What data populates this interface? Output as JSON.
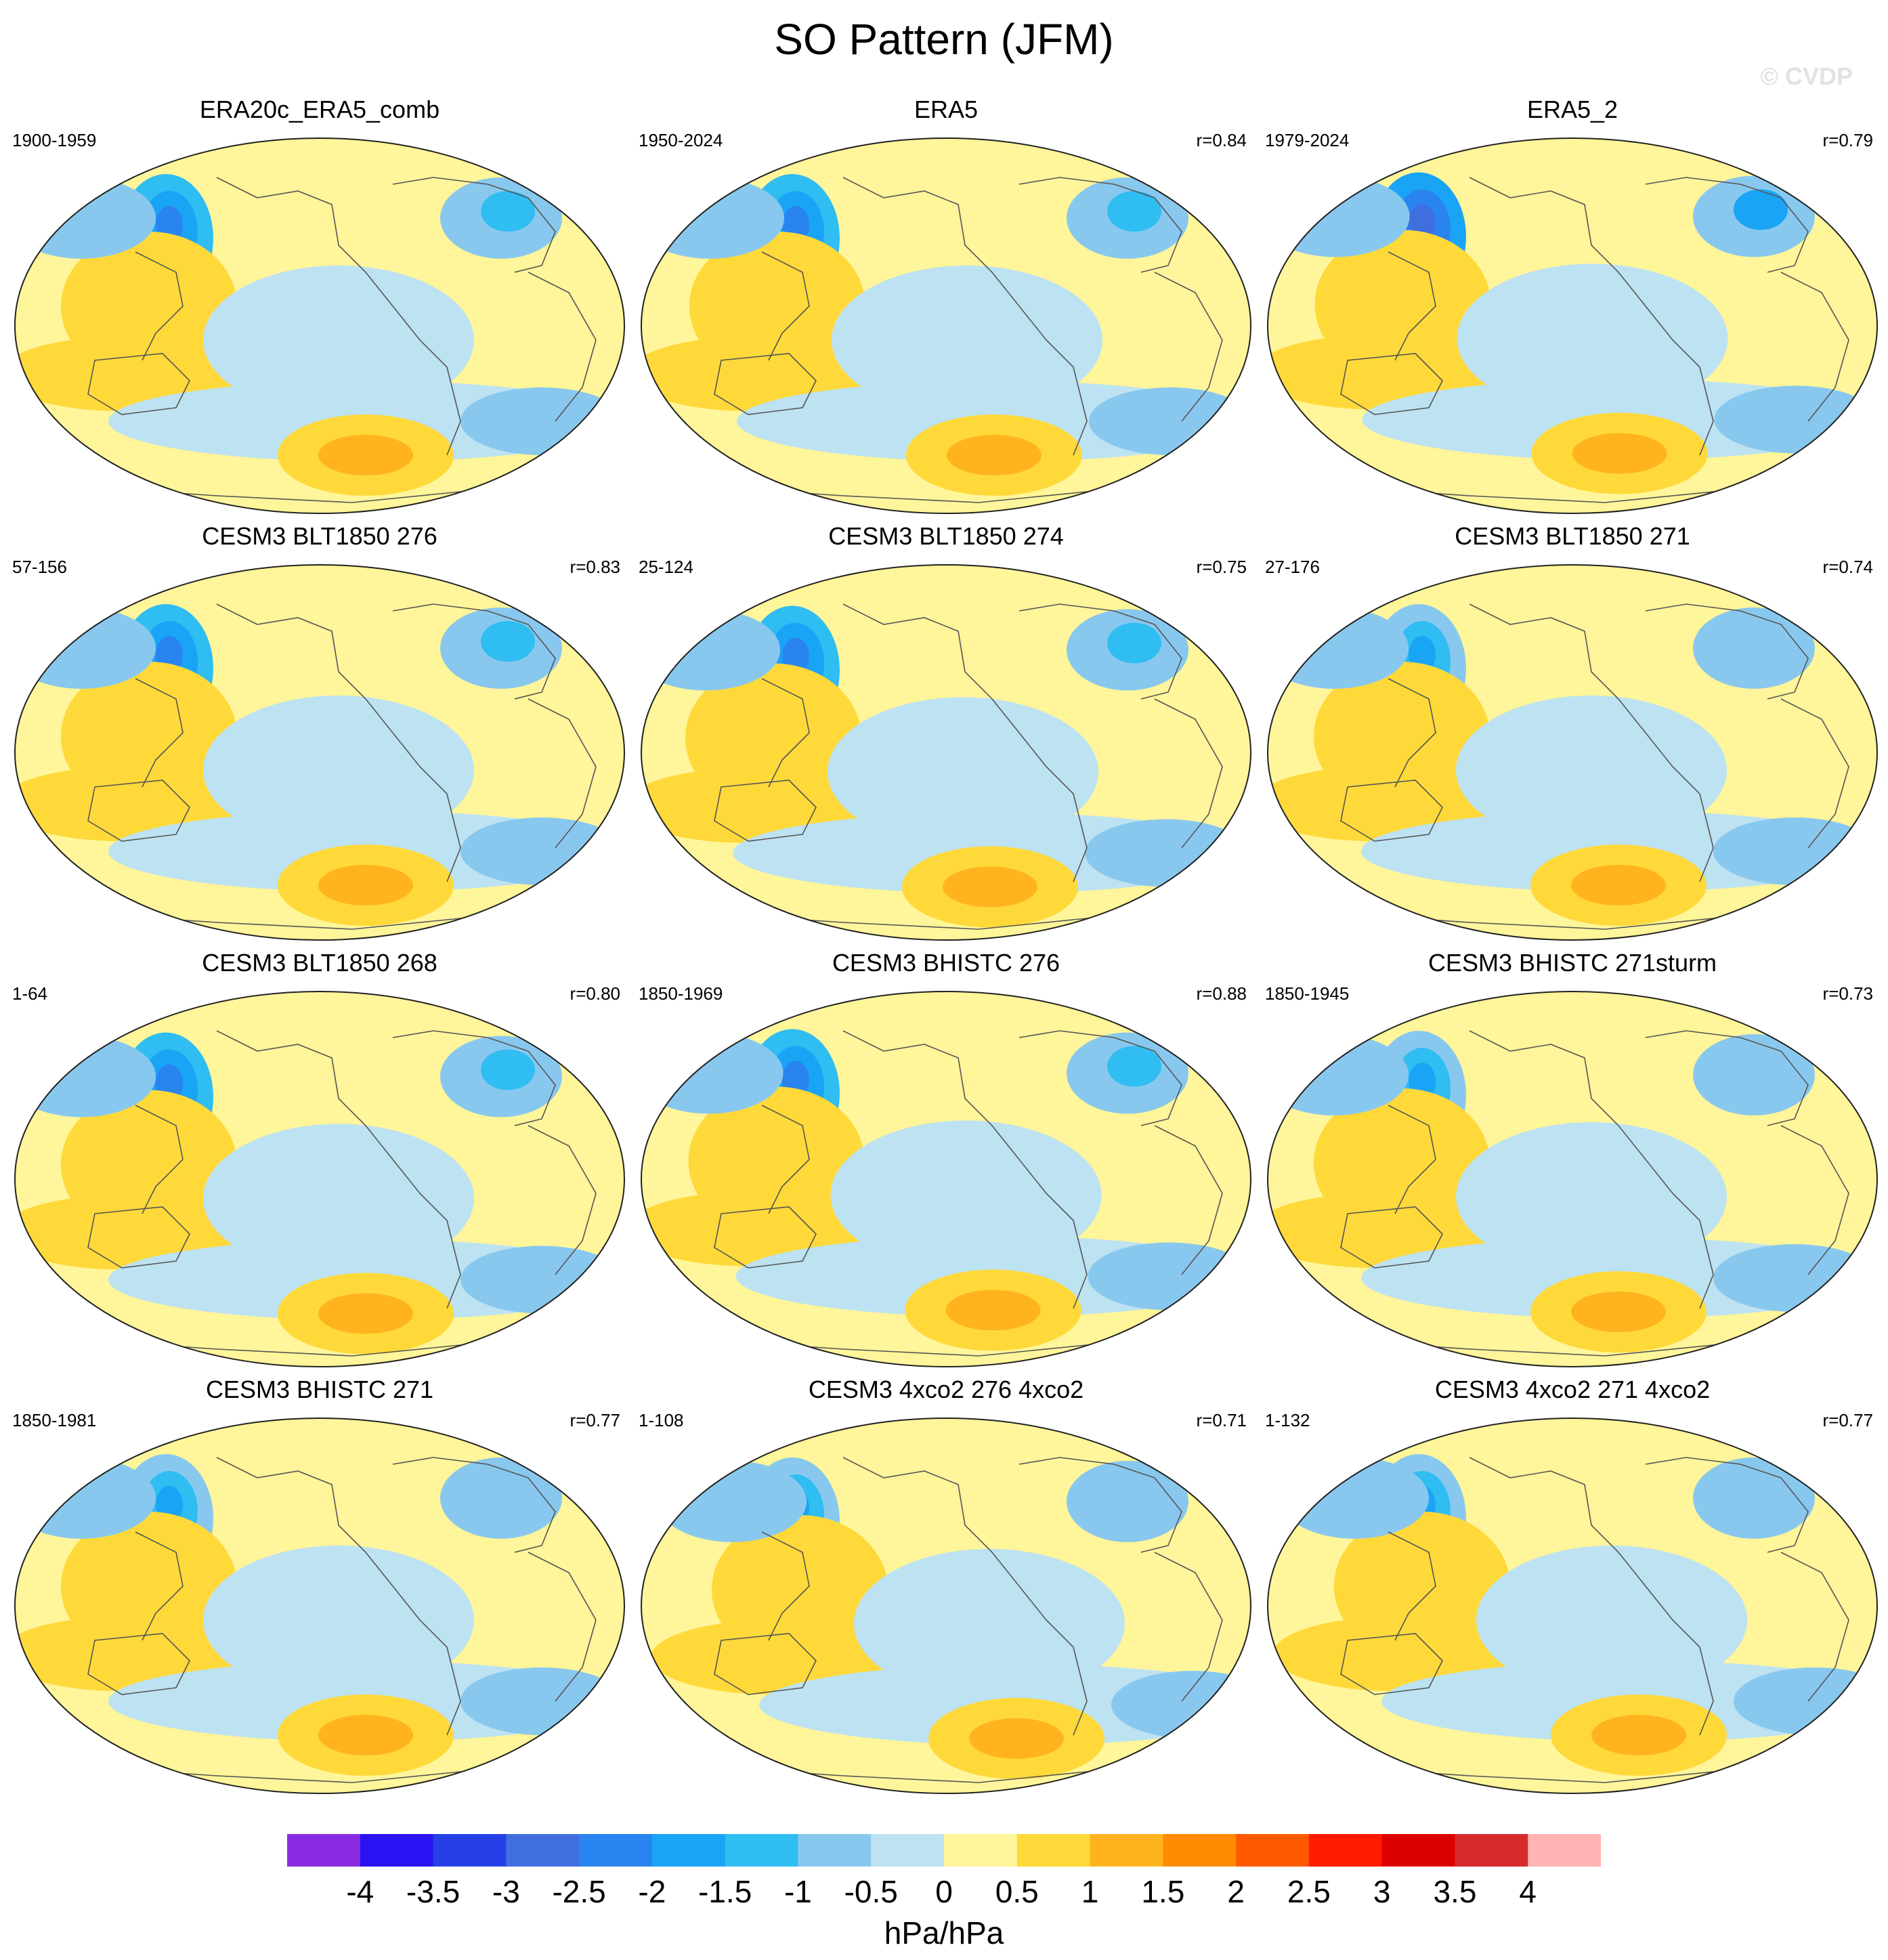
{
  "chart_data": {
    "type": "heatmap",
    "title": "SO Pattern (JFM)",
    "watermark": "© CVDP",
    "units": "hPa/hPa",
    "colorbar": {
      "levels": [
        "-4",
        "-3.5",
        "-3",
        "-2.5",
        "-2",
        "-1.5",
        "-1",
        "-0.5",
        "0",
        "0.5",
        "1",
        "1.5",
        "2",
        "2.5",
        "3",
        "3.5",
        "4"
      ],
      "colors": [
        "#8a2be2",
        "#2a13f2",
        "#2440e6",
        "#3f6fdf",
        "#2a84f0",
        "#1aa4f5",
        "#2fbdf2",
        "#89c8ee",
        "#bde2f2",
        "#fff59a",
        "#ffd93a",
        "#ffb41f",
        "#ff8c00",
        "#ff5a00",
        "#ff1a00",
        "#dd0000",
        "#d62b2b",
        "#ffb3b3"
      ]
    },
    "panels": [
      {
        "title": "ERA20c_ERA5_comb",
        "years": "1900-1959",
        "r": ""
      },
      {
        "title": "ERA5",
        "years": "1950-2024",
        "r": "r=0.84"
      },
      {
        "title": "ERA5_2",
        "years": "1979-2024",
        "r": "r=0.79"
      },
      {
        "title": "CESM3 BLT1850 276",
        "years": "57-156",
        "r": "r=0.83"
      },
      {
        "title": "CESM3 BLT1850 274",
        "years": "25-124",
        "r": "r=0.75"
      },
      {
        "title": "CESM3 BLT1850 271",
        "years": "27-176",
        "r": "r=0.74"
      },
      {
        "title": "CESM3 BLT1850 268",
        "years": "1-64",
        "r": "r=0.80"
      },
      {
        "title": "CESM3 BHISTC 276",
        "years": "1850-1969",
        "r": "r=0.88"
      },
      {
        "title": "CESM3 BHISTC 271sturm",
        "years": "1850-1945",
        "r": "r=0.73"
      },
      {
        "title": "CESM3 BHISTC 271",
        "years": "1850-1981",
        "r": "r=0.77"
      },
      {
        "title": "CESM3 4xco2 276 4xco2",
        "years": "1-108",
        "r": "r=0.71"
      },
      {
        "title": "CESM3 4xco2 271 4xco2",
        "years": "1-132",
        "r": "r=0.77"
      }
    ]
  }
}
